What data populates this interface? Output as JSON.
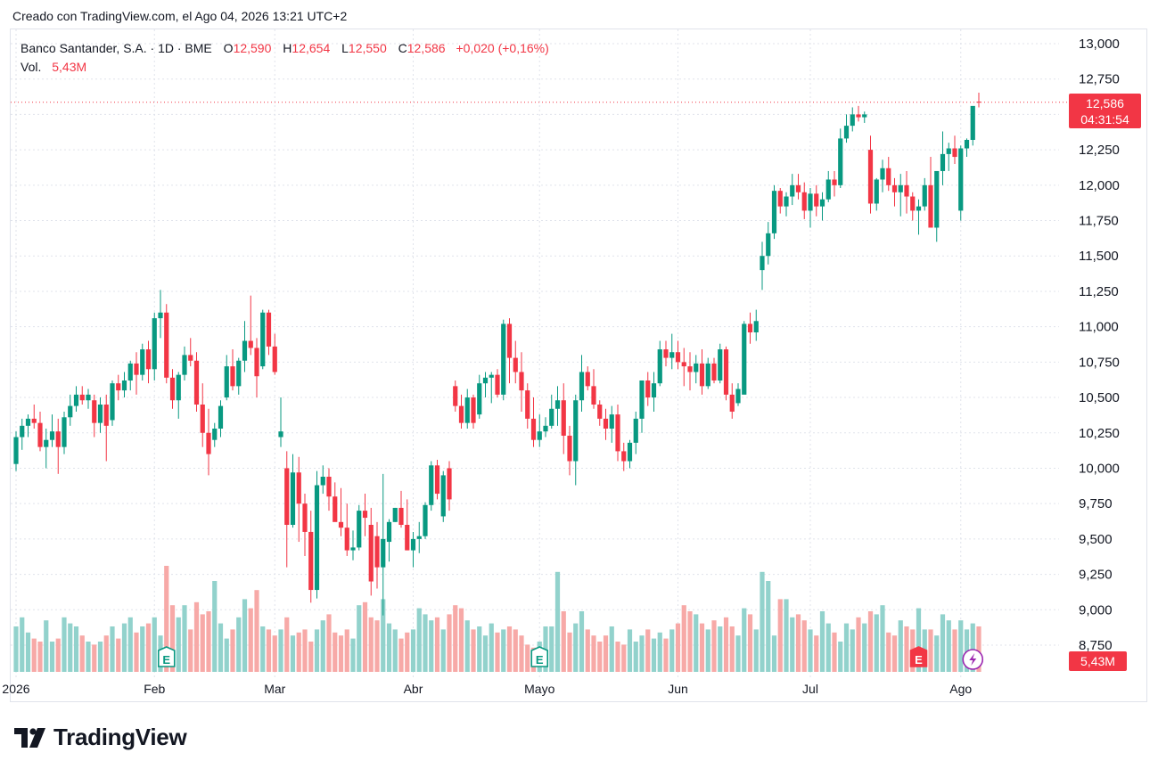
{
  "caption": "Creado con TradingView.com, el Ago 04, 2026 13:21 UTC+2",
  "legend": {
    "symbol": "Banco Santander, S.A. · 1D · BME",
    "open_label": "O",
    "open_value": "12,590",
    "high_label": "H",
    "high_value": "12,654",
    "low_label": "L",
    "low_value": "12,550",
    "close_label": "C",
    "close_value": "12,586",
    "change": "+0,020 (+0,16%)",
    "volume_label": "Vol.",
    "volume_value": "5,43M"
  },
  "price_tag": {
    "price": "12,586",
    "countdown": "04:31:54"
  },
  "volume_tag": "5,43M",
  "footer": {
    "brand": "TradingView"
  },
  "colors": {
    "up": "#089981",
    "down": "#f23645",
    "up_volume": "#92d2cc",
    "down_volume": "#f7a9a7",
    "grid": "#e0e3eb"
  },
  "chart_data": {
    "type": "candlestick",
    "symbol": "Banco Santander, S.A.",
    "interval": "1D",
    "exchange": "BME",
    "ylim": [
      8600,
      13050
    ],
    "y_ticks": [
      "13,000",
      "12,750",
      "12,500",
      "12,250",
      "12,000",
      "11,750",
      "11,500",
      "11,250",
      "11,000",
      "10,750",
      "10,500",
      "10,250",
      "10,000",
      "9,750",
      "9,500",
      "9,250",
      "9,000",
      "8,750"
    ],
    "x_labels": [
      "2026",
      "Feb",
      "Mar",
      "Abr",
      "Mayo",
      "Jun",
      "Jul",
      "Ago"
    ],
    "x_label_index": [
      0,
      23,
      43,
      66,
      87,
      110,
      132,
      157
    ],
    "last_price": 12.586,
    "event_markers": [
      {
        "type": "earnings",
        "label": "E",
        "index": 25
      },
      {
        "type": "earnings",
        "label": "E",
        "index": 87
      },
      {
        "type": "earnings",
        "label": "E",
        "index": 150
      },
      {
        "type": "lightning",
        "label": "",
        "index": 159
      }
    ],
    "candles": [
      [
        10.03,
        10.26,
        9.98,
        10.22,
        15
      ],
      [
        10.22,
        10.35,
        10.13,
        10.3,
        18
      ],
      [
        10.3,
        10.38,
        10.22,
        10.35,
        13
      ],
      [
        10.35,
        10.45,
        10.28,
        10.32,
        11
      ],
      [
        10.32,
        10.4,
        10.12,
        10.15,
        10
      ],
      [
        10.15,
        10.28,
        10.0,
        10.2,
        17
      ],
      [
        10.2,
        10.38,
        10.15,
        10.26,
        10
      ],
      [
        10.26,
        10.35,
        9.96,
        10.15,
        11
      ],
      [
        10.15,
        10.4,
        10.1,
        10.36,
        18
      ],
      [
        10.36,
        10.52,
        10.3,
        10.44,
        16
      ],
      [
        10.44,
        10.58,
        10.4,
        10.52,
        15
      ],
      [
        10.52,
        10.58,
        10.45,
        10.48,
        12
      ],
      [
        10.48,
        10.56,
        10.42,
        10.52,
        10
      ],
      [
        10.48,
        10.52,
        10.22,
        10.32,
        9
      ],
      [
        10.32,
        10.5,
        10.25,
        10.45,
        10
      ],
      [
        10.45,
        10.52,
        10.05,
        10.3,
        12
      ],
      [
        10.34,
        10.62,
        10.3,
        10.6,
        15
      ],
      [
        10.6,
        10.66,
        10.48,
        10.55,
        11
      ],
      [
        10.55,
        10.68,
        10.5,
        10.62,
        16
      ],
      [
        10.62,
        10.76,
        10.55,
        10.74,
        18
      ],
      [
        10.74,
        10.82,
        10.52,
        10.66,
        13
      ],
      [
        10.66,
        10.88,
        10.62,
        10.84,
        15
      ],
      [
        10.84,
        10.9,
        10.6,
        10.7,
        16
      ],
      [
        10.7,
        11.1,
        10.62,
        11.06,
        18
      ],
      [
        11.06,
        11.26,
        10.92,
        11.1,
        12
      ],
      [
        11.1,
        11.16,
        10.6,
        10.64,
        35
      ],
      [
        10.64,
        10.7,
        10.42,
        10.48,
        22
      ],
      [
        10.48,
        10.68,
        10.35,
        10.66,
        18
      ],
      [
        10.66,
        10.86,
        10.62,
        10.8,
        22
      ],
      [
        10.8,
        10.92,
        10.72,
        10.76,
        14
      ],
      [
        10.76,
        10.82,
        10.4,
        10.45,
        23
      ],
      [
        10.45,
        10.6,
        10.15,
        10.25,
        19
      ],
      [
        10.25,
        10.42,
        9.95,
        10.1,
        20
      ],
      [
        10.2,
        10.32,
        10.15,
        10.28,
        30
      ],
      [
        10.28,
        10.48,
        10.22,
        10.44,
        16
      ],
      [
        10.5,
        10.8,
        10.48,
        10.72,
        11
      ],
      [
        10.72,
        10.84,
        10.55,
        10.58,
        14
      ],
      [
        10.58,
        10.78,
        10.52,
        10.76,
        18
      ],
      [
        10.76,
        11.04,
        10.68,
        10.9,
        24
      ],
      [
        10.9,
        11.22,
        10.8,
        10.85,
        21
      ],
      [
        10.85,
        10.92,
        10.5,
        10.65,
        27
      ],
      [
        10.72,
        11.12,
        10.7,
        11.1,
        15
      ],
      [
        11.1,
        11.12,
        10.8,
        10.86,
        14
      ],
      [
        10.86,
        10.95,
        10.66,
        10.68,
        12
      ],
      [
        10.22,
        10.5,
        10.15,
        10.26,
        14
      ],
      [
        10.0,
        10.12,
        9.3,
        9.6,
        18
      ],
      [
        9.6,
        10.1,
        9.58,
        9.97,
        12
      ],
      [
        9.97,
        10.08,
        9.48,
        9.75,
        13
      ],
      [
        9.75,
        9.82,
        9.38,
        9.55,
        14
      ],
      [
        9.55,
        9.7,
        9.05,
        9.14,
        10
      ],
      [
        9.14,
        9.98,
        9.08,
        9.88,
        14
      ],
      [
        9.88,
        10.02,
        9.82,
        9.94,
        17
      ],
      [
        9.94,
        10.0,
        9.7,
        9.8,
        19
      ],
      [
        9.8,
        9.9,
        9.65,
        9.62,
        13
      ],
      [
        9.62,
        9.86,
        9.52,
        9.58,
        12
      ],
      [
        9.58,
        9.75,
        9.38,
        9.42,
        14
      ],
      [
        9.42,
        9.56,
        9.35,
        9.44,
        11
      ],
      [
        9.44,
        9.74,
        9.42,
        9.7,
        22
      ],
      [
        9.7,
        9.82,
        9.52,
        9.65,
        23
      ],
      [
        9.6,
        9.72,
        9.1,
        9.2,
        18
      ],
      [
        9.52,
        9.62,
        9.15,
        9.3,
        17
      ],
      [
        9.3,
        9.96,
        8.96,
        9.5,
        24
      ],
      [
        9.48,
        9.64,
        9.34,
        9.62,
        16
      ],
      [
        9.62,
        9.72,
        9.62,
        9.72,
        14
      ],
      [
        9.72,
        9.84,
        9.58,
        9.6,
        11
      ],
      [
        9.6,
        9.78,
        9.42,
        9.42,
        13
      ],
      [
        9.42,
        9.55,
        9.3,
        9.5,
        14
      ],
      [
        9.5,
        9.62,
        9.4,
        9.52,
        21
      ],
      [
        9.52,
        9.76,
        9.5,
        9.74,
        19
      ],
      [
        9.74,
        10.05,
        9.7,
        10.02,
        17
      ],
      [
        10.02,
        10.06,
        9.78,
        9.82,
        18
      ],
      [
        9.66,
        9.98,
        9.62,
        9.95,
        14
      ],
      [
        10.0,
        10.05,
        9.7,
        9.78,
        19
      ],
      [
        10.58,
        10.62,
        10.4,
        10.44,
        22
      ],
      [
        10.44,
        10.52,
        10.28,
        10.32,
        21
      ],
      [
        10.32,
        10.56,
        10.28,
        10.5,
        17
      ],
      [
        10.5,
        10.52,
        10.28,
        10.32,
        14
      ],
      [
        10.38,
        10.66,
        10.35,
        10.6,
        15
      ],
      [
        10.6,
        10.68,
        10.5,
        10.64,
        12
      ],
      [
        10.64,
        10.68,
        10.46,
        10.66,
        16
      ],
      [
        10.66,
        10.7,
        10.5,
        10.52,
        13
      ],
      [
        10.52,
        11.05,
        10.48,
        11.02,
        14
      ],
      [
        11.02,
        11.06,
        10.6,
        10.78,
        15
      ],
      [
        10.78,
        10.9,
        10.6,
        10.68,
        14
      ],
      [
        10.68,
        10.82,
        10.4,
        10.55,
        12
      ],
      [
        10.55,
        10.6,
        10.28,
        10.35,
        9
      ],
      [
        10.35,
        10.5,
        10.15,
        10.2,
        8
      ],
      [
        10.2,
        10.38,
        10.15,
        10.26,
        10
      ],
      [
        10.26,
        10.36,
        10.22,
        10.3,
        15
      ],
      [
        10.3,
        10.52,
        10.28,
        10.42,
        15
      ],
      [
        10.42,
        10.58,
        10.3,
        10.48,
        33
      ],
      [
        10.48,
        10.6,
        10.1,
        10.23,
        20
      ],
      [
        10.23,
        10.3,
        9.95,
        10.05,
        13
      ],
      [
        10.05,
        10.52,
        9.88,
        10.48,
        16
      ],
      [
        10.48,
        10.8,
        10.4,
        10.68,
        20
      ],
      [
        10.68,
        10.72,
        10.55,
        10.58,
        14
      ],
      [
        10.58,
        10.7,
        10.42,
        10.45,
        12
      ],
      [
        10.45,
        10.48,
        10.3,
        10.35,
        10
      ],
      [
        10.35,
        10.42,
        10.2,
        10.28,
        12
      ],
      [
        10.28,
        10.44,
        10.18,
        10.38,
        15
      ],
      [
        10.38,
        10.45,
        10.05,
        10.12,
        10
      ],
      [
        10.12,
        10.18,
        9.98,
        10.05,
        9
      ],
      [
        10.05,
        10.2,
        10.0,
        10.18,
        14
      ],
      [
        10.18,
        10.4,
        10.1,
        10.35,
        10
      ],
      [
        10.35,
        10.55,
        10.25,
        10.62,
        12
      ],
      [
        10.62,
        10.68,
        10.44,
        10.5,
        14
      ],
      [
        10.5,
        10.68,
        10.4,
        10.6,
        11
      ],
      [
        10.6,
        10.9,
        10.58,
        10.84,
        13
      ],
      [
        10.84,
        10.9,
        10.72,
        10.78,
        11
      ],
      [
        10.78,
        10.95,
        10.7,
        10.82,
        14
      ],
      [
        10.82,
        10.9,
        10.7,
        10.75,
        16
      ],
      [
        10.75,
        10.85,
        10.58,
        10.72,
        22
      ],
      [
        10.72,
        10.82,
        10.55,
        10.68,
        20
      ],
      [
        10.68,
        10.8,
        10.6,
        10.74,
        19
      ],
      [
        10.74,
        10.84,
        10.52,
        10.58,
        16
      ],
      [
        10.58,
        10.78,
        10.56,
        10.74,
        14
      ],
      [
        10.74,
        10.78,
        10.6,
        10.62,
        17
      ],
      [
        10.62,
        10.88,
        10.6,
        10.84,
        15
      ],
      [
        10.84,
        10.86,
        10.48,
        10.52,
        18
      ],
      [
        10.52,
        10.6,
        10.35,
        10.4,
        15
      ],
      [
        10.46,
        10.6,
        10.44,
        10.56,
        12
      ],
      [
        10.52,
        11.04,
        10.74,
        11.02,
        21
      ],
      [
        11.02,
        11.1,
        10.88,
        10.96,
        19
      ],
      [
        10.96,
        11.12,
        10.9,
        11.04,
        14
      ],
      [
        11.4,
        11.6,
        11.26,
        11.5,
        33
      ],
      [
        11.5,
        11.74,
        11.44,
        11.66,
        30
      ],
      [
        11.66,
        12.0,
        11.62,
        11.96,
        12
      ],
      [
        11.96,
        11.98,
        11.8,
        11.85,
        24
      ],
      [
        11.85,
        11.95,
        11.78,
        11.92,
        24
      ],
      [
        11.92,
        12.08,
        11.86,
        12.0,
        18
      ],
      [
        12.0,
        12.08,
        11.9,
        11.95,
        19
      ],
      [
        11.95,
        12.02,
        11.76,
        11.82,
        17
      ],
      [
        11.82,
        11.98,
        11.7,
        11.94,
        14
      ],
      [
        11.94,
        12.0,
        11.78,
        11.85,
        12
      ],
      [
        11.85,
        11.95,
        11.75,
        11.9,
        20
      ],
      [
        11.9,
        12.1,
        11.88,
        12.04,
        16
      ],
      [
        12.04,
        12.1,
        11.92,
        12.0,
        13
      ],
      [
        12.0,
        12.4,
        11.98,
        12.33,
        10
      ],
      [
        12.33,
        12.5,
        12.3,
        12.42,
        16
      ],
      [
        12.42,
        12.55,
        12.38,
        12.5,
        14
      ],
      [
        12.5,
        12.56,
        12.45,
        12.48,
        18
      ],
      [
        12.48,
        12.52,
        12.44,
        12.5,
        16
      ],
      [
        12.25,
        12.35,
        11.8,
        11.87,
        20
      ],
      [
        11.87,
        12.05,
        11.82,
        12.04,
        19
      ],
      [
        12.04,
        12.18,
        11.95,
        12.12,
        22
      ],
      [
        12.12,
        12.2,
        11.96,
        12.0,
        13
      ],
      [
        12.0,
        12.05,
        11.85,
        11.95,
        12
      ],
      [
        11.95,
        12.08,
        11.78,
        12.0,
        17
      ],
      [
        12.0,
        12.1,
        11.8,
        11.92,
        15
      ],
      [
        11.92,
        11.95,
        11.75,
        11.82,
        14
      ],
      [
        11.82,
        11.9,
        11.65,
        11.85,
        21
      ],
      [
        11.85,
        12.05,
        11.82,
        12.0,
        14
      ],
      [
        12.0,
        12.2,
        11.8,
        11.7,
        14
      ],
      [
        11.7,
        12.05,
        11.6,
        12.1,
        12
      ],
      [
        12.1,
        12.38,
        12.0,
        12.22,
        19
      ],
      [
        12.22,
        12.3,
        12.1,
        12.26,
        17
      ],
      [
        12.26,
        12.35,
        12.15,
        12.2,
        14
      ],
      [
        11.82,
        12.28,
        11.75,
        12.26,
        17
      ],
      [
        12.26,
        12.33,
        12.2,
        12.32,
        14
      ],
      [
        12.32,
        12.52,
        12.28,
        12.56,
        16
      ],
      [
        12.59,
        12.654,
        12.55,
        12.586,
        15
      ]
    ]
  }
}
